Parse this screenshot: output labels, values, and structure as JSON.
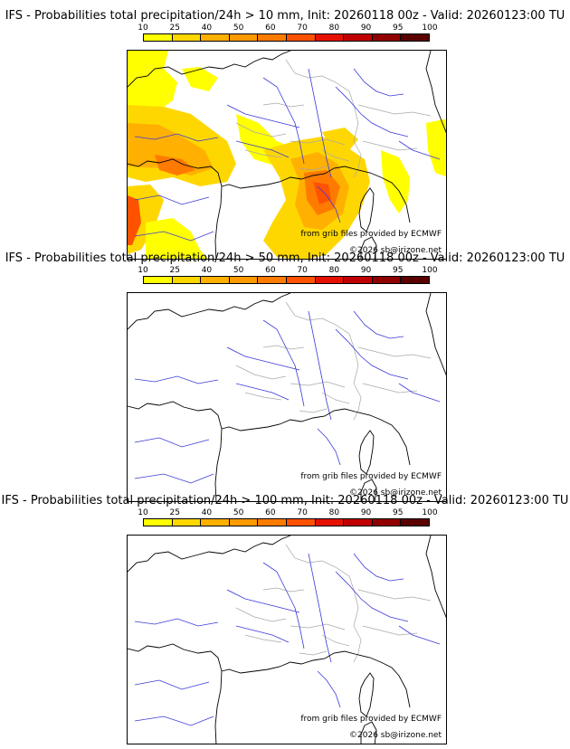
{
  "colorbar": {
    "ticks": [
      "10",
      "25",
      "40",
      "50",
      "60",
      "70",
      "80",
      "90",
      "95",
      "100"
    ],
    "colors": [
      "#ffff00",
      "#ffd700",
      "#ffb000",
      "#ff9a00",
      "#ff7b00",
      "#ff5200",
      "#e61000",
      "#c00000",
      "#900000",
      "#5a0000"
    ]
  },
  "panels": [
    {
      "title": "IFS - Probabilities total precipitation/24h > 10 mm, Init: 20260118 00z - Valid: 20260123:00 TU",
      "has_precip": true
    },
    {
      "title": "IFS - Probabilities total precipitation/24h > 50 mm, Init: 20260118 00z - Valid: 20260123:00 TU",
      "has_precip": false
    },
    {
      "title": "IFS - Probabilities total precipitation/24h > 100 mm, Init: 20260118 00z - Valid: 20260123:00 TU",
      "has_precip": false
    }
  ],
  "credits": {
    "source": "from grib files provided by ECMWF",
    "copyright": "©2026 sb@irizone.net"
  },
  "colors": {
    "coast": "#000000",
    "rivers": "#3a3ad8",
    "borders": "#a8a8a8"
  }
}
